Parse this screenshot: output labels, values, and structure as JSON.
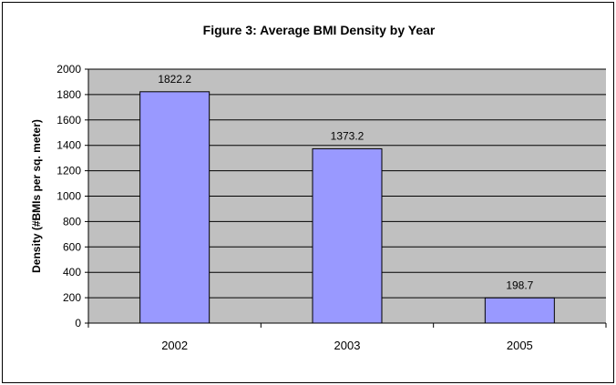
{
  "chart_data": {
    "type": "bar",
    "title": "Figure 3: Average BMI Density by Year",
    "xlabel": "",
    "ylabel": "Density (#BMIs per sq. meter)",
    "categories": [
      "2002",
      "2003",
      "2005"
    ],
    "values": [
      1822.2,
      1373.2,
      198.7
    ],
    "data_labels": [
      "1822.2",
      "1373.2",
      "198.7"
    ],
    "ylim": [
      0,
      2000
    ],
    "yticks": [
      0,
      200,
      400,
      600,
      800,
      1000,
      1200,
      1400,
      1600,
      1800,
      2000
    ],
    "grid": true,
    "legend": "none",
    "colors": {
      "bar": "#9999ff",
      "bar_border": "#000000",
      "plot_background": "#c0c0c0",
      "gridline": "#000000"
    }
  }
}
